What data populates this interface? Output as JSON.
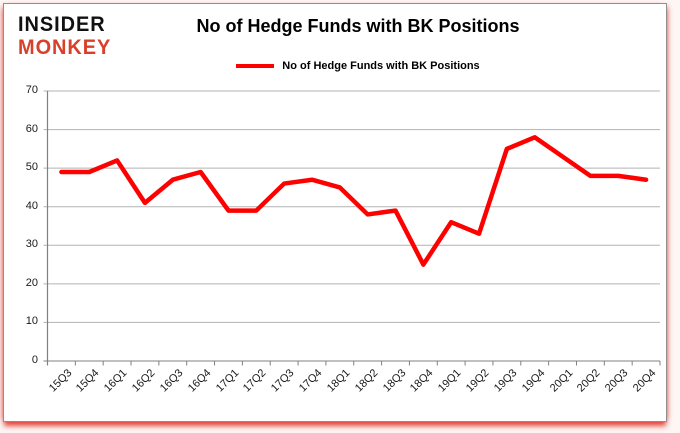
{
  "logo": {
    "line1": "INSIDER",
    "line2": "MONKEY"
  },
  "header": {
    "title": "No of Hedge Funds with BK Positions"
  },
  "legend": {
    "label": "No of Hedge Funds with BK Positions"
  },
  "colors": {
    "line": "#ff0000",
    "logo_black": "#111111",
    "logo_red": "#d8402a",
    "grid": "#b3b3b3",
    "axis": "#808080",
    "tick_label": "#1a1a1a"
  },
  "chart_data": {
    "type": "line",
    "title": "No of Hedge Funds with BK Positions",
    "series_name": "No of Hedge Funds with BK Positions",
    "categories": [
      "15Q3",
      "15Q4",
      "16Q1",
      "16Q2",
      "16Q3",
      "16Q4",
      "17Q1",
      "17Q2",
      "17Q3",
      "17Q4",
      "18Q1",
      "18Q2",
      "18Q3",
      "18Q4",
      "19Q1",
      "19Q2",
      "19Q3",
      "19Q4",
      "20Q1",
      "20Q2",
      "20Q3",
      "20Q4"
    ],
    "values": [
      49,
      49,
      52,
      41,
      47,
      49,
      39,
      39,
      46,
      47,
      45,
      38,
      39,
      25,
      36,
      33,
      55,
      58,
      53,
      48,
      48,
      47
    ],
    "xlabel": "",
    "ylabel": "",
    "ylim": [
      0,
      70
    ],
    "ytick_step": 10,
    "grid": true,
    "legend_position": "top"
  }
}
